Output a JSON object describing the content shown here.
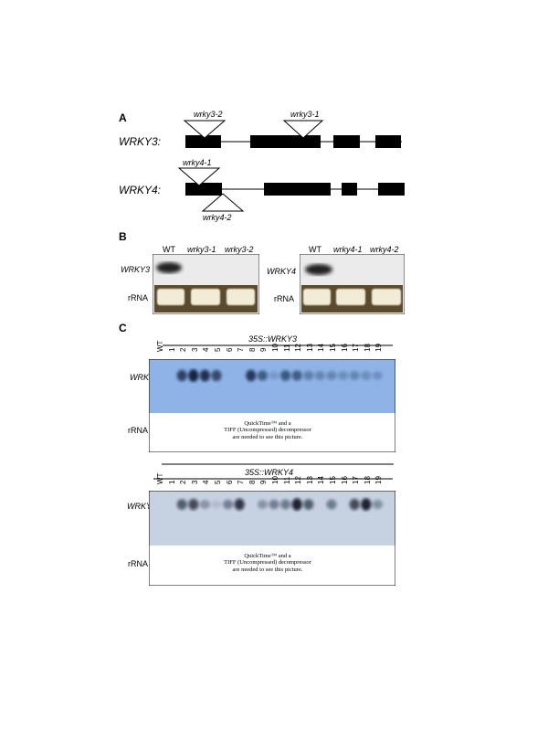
{
  "panelA": {
    "letter": "A",
    "gene1": "WRKY3:",
    "gene2": "WRKY4:",
    "alleles": {
      "w32": "wrky3-2",
      "w31": "wrky3-1",
      "w41": "wrky4-1",
      "w42": "wrky4-2"
    }
  },
  "panelB": {
    "letter": "B",
    "left": {
      "probe": "WRKY3",
      "rrna": "rRNA",
      "lanes": [
        "WT",
        "wrky3-1",
        "wrky3-2"
      ]
    },
    "right": {
      "probe": "WRKY4",
      "rrna": "rRNA",
      "lanes": [
        "WT",
        "wrky4-1",
        "wrky4-2"
      ]
    }
  },
  "panelC": {
    "letter": "C",
    "top": {
      "title": "35S::WRKY3",
      "probe": "WRKY3",
      "rrna": "rRNA",
      "lanes": [
        "WT",
        "1",
        "2",
        "3",
        "4",
        "5",
        "6",
        "7",
        "8",
        "9",
        "10",
        "11",
        "12",
        "13",
        "14",
        "15",
        "16",
        "17",
        "18",
        "19"
      ],
      "placeholder": [
        "QuickTime™ and a",
        "TIFF (Uncompressed) decompressor",
        "are needed to see this picture."
      ]
    },
    "bottom": {
      "title": "35S::WRKY4",
      "probe": "WRKY4",
      "rrna": "rRNA",
      "lanes": [
        "WT",
        "1",
        "2",
        "3",
        "4",
        "5",
        "6",
        "7",
        "8",
        "9",
        "10",
        "11",
        "12",
        "13",
        "14",
        "15",
        "16",
        "17",
        "18",
        "19"
      ],
      "placeholder": [
        "QuickTime™ and a",
        "TIFF (Uncompressed) decompressor",
        "are needed to see this picture."
      ]
    }
  },
  "colors": {
    "blot_top": "#8fb3e6",
    "blot_bottom": "#c6d1e2",
    "gel_bg": "#ececec"
  }
}
